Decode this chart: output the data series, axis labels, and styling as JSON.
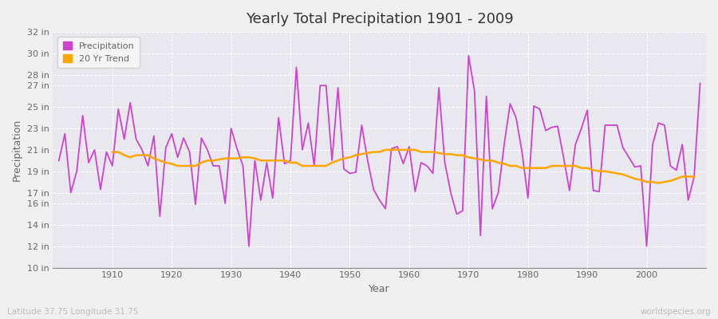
{
  "title": "Yearly Total Precipitation 1901 - 2009",
  "xlabel": "Year",
  "ylabel": "Precipitation",
  "xlabel_bottom": "Latitude 37.75 Longitude 31.75",
  "watermark": "worldspecies.org",
  "ylim": [
    10,
    32
  ],
  "yticks": [
    10,
    12,
    14,
    16,
    17,
    19,
    21,
    23,
    25,
    27,
    28,
    30,
    32
  ],
  "ytick_labels": [
    "10 in",
    "12 in",
    "14 in",
    "16 in",
    "17 in",
    "19 in",
    "21 in",
    "23 in",
    "25 in",
    "27 in",
    "28 in",
    "30 in",
    "32 in"
  ],
  "years": [
    1901,
    1902,
    1903,
    1904,
    1905,
    1906,
    1907,
    1908,
    1909,
    1910,
    1911,
    1912,
    1913,
    1914,
    1915,
    1916,
    1917,
    1918,
    1919,
    1920,
    1921,
    1922,
    1923,
    1924,
    1925,
    1926,
    1927,
    1928,
    1929,
    1930,
    1931,
    1932,
    1933,
    1934,
    1935,
    1936,
    1937,
    1938,
    1939,
    1940,
    1941,
    1942,
    1943,
    1944,
    1945,
    1946,
    1947,
    1948,
    1949,
    1950,
    1951,
    1952,
    1953,
    1954,
    1955,
    1956,
    1957,
    1958,
    1959,
    1960,
    1961,
    1962,
    1963,
    1964,
    1965,
    1966,
    1967,
    1968,
    1969,
    1970,
    1971,
    1972,
    1973,
    1974,
    1975,
    1976,
    1977,
    1978,
    1979,
    1980,
    1981,
    1982,
    1983,
    1984,
    1985,
    1986,
    1987,
    1988,
    1989,
    1990,
    1991,
    1992,
    1993,
    1994,
    1995,
    1996,
    1997,
    1998,
    1999,
    2000,
    2001,
    2002,
    2003,
    2004,
    2005,
    2006,
    2007,
    2008,
    2009
  ],
  "precipitation": [
    20.0,
    22.5,
    17.0,
    19.0,
    24.2,
    19.8,
    21.0,
    17.3,
    20.8,
    19.5,
    24.8,
    22.0,
    25.4,
    22.0,
    21.0,
    19.5,
    22.3,
    14.8,
    21.2,
    22.5,
    20.3,
    22.1,
    20.8,
    15.9,
    22.1,
    21.0,
    19.5,
    19.5,
    16.0,
    23.0,
    21.1,
    19.5,
    12.0,
    20.0,
    16.3,
    19.8,
    16.5,
    24.0,
    19.7,
    20.0,
    28.7,
    21.0,
    23.5,
    19.5,
    27.0,
    27.0,
    20.0,
    26.8,
    19.2,
    18.8,
    18.9,
    23.3,
    20.0,
    17.3,
    16.3,
    15.5,
    21.1,
    21.3,
    19.7,
    21.3,
    17.1,
    19.8,
    19.5,
    18.8,
    26.8,
    19.8,
    17.0,
    15.0,
    15.3,
    29.8,
    26.5,
    13.0,
    26.0,
    15.5,
    17.0,
    21.5,
    25.3,
    24.0,
    20.8,
    16.5,
    25.1,
    24.8,
    22.8,
    23.1,
    23.2,
    20.3,
    17.2,
    21.5,
    23.0,
    24.7,
    17.2,
    17.1,
    23.3,
    23.3,
    23.3,
    21.2,
    20.3,
    19.4,
    19.5,
    12.0,
    21.5,
    23.5,
    23.3,
    19.5,
    19.1,
    21.5,
    16.3,
    18.5,
    27.2
  ],
  "trend_start_year": 1910,
  "trend": [
    20.8,
    20.8,
    20.5,
    20.3,
    20.5,
    20.5,
    20.5,
    20.2,
    20.0,
    19.8,
    19.7,
    19.5,
    19.5,
    19.5,
    19.5,
    19.8,
    20.0,
    20.0,
    20.1,
    20.2,
    20.2,
    20.2,
    20.3,
    20.3,
    20.2,
    20.0,
    20.0,
    20.0,
    20.0,
    20.0,
    19.8,
    19.8,
    19.5,
    19.5,
    19.5,
    19.5,
    19.5,
    19.8,
    20.0,
    20.2,
    20.3,
    20.5,
    20.6,
    20.7,
    20.8,
    20.8,
    21.0,
    21.0,
    21.0,
    21.0,
    21.0,
    21.0,
    20.8,
    20.8,
    20.8,
    20.7,
    20.6,
    20.6,
    20.5,
    20.5,
    20.3,
    20.2,
    20.1,
    20.0,
    20.0,
    19.8,
    19.7,
    19.5,
    19.5,
    19.3,
    19.3,
    19.3,
    19.3,
    19.3,
    19.5,
    19.5,
    19.5,
    19.5,
    19.5,
    19.3,
    19.3,
    19.1,
    19.0,
    19.0,
    18.9,
    18.8,
    18.7,
    18.5,
    18.3,
    18.2,
    18.0,
    18.0,
    17.9,
    18.0,
    18.1,
    18.3,
    18.5,
    18.5,
    18.5
  ],
  "precip_color": "#CC44CC",
  "trend_color": "#FFA500",
  "bg_color": "#F0F0F0",
  "plot_bg_color": "#E8E8EE",
  "grid_color": "#FFFFFF",
  "title_color": "#333333",
  "axis_label_color": "#666666",
  "tick_label_color": "#666666",
  "watermark_color": "#BBBBBB",
  "legend_bg": "#F8F8F8",
  "xlim": [
    1900,
    2010
  ]
}
